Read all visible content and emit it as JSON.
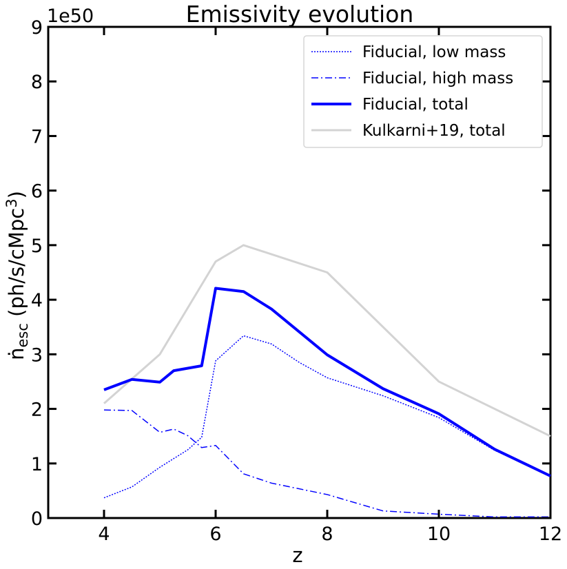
{
  "chart_data": {
    "type": "line",
    "title": "Emissivity evolution",
    "xlabel": "z",
    "ylabel_main": "ṅ",
    "ylabel_sub": "esc",
    "ylabel_rest": " (ph/s/cMpc",
    "ylabel_sup": "3",
    "ylabel_close": ")",
    "y_offset_label": "1e50",
    "xlim": [
      3,
      12
    ],
    "ylim": [
      0,
      9
    ],
    "xticks": [
      4,
      6,
      8,
      10,
      12
    ],
    "xtick_labels": [
      "4",
      "6",
      "8",
      "10",
      "12"
    ],
    "yticks": [
      0,
      1,
      2,
      3,
      4,
      5,
      6,
      7,
      8,
      9
    ],
    "ytick_labels": [
      "0",
      "1",
      "2",
      "3",
      "4",
      "5",
      "6",
      "7",
      "8",
      "9"
    ],
    "legend_position": "top-right",
    "series": [
      {
        "name": "Fiducial, low mass",
        "color": "#0000ff",
        "style": "dotted",
        "x": [
          4,
          4.5,
          5,
          5.5,
          5.75,
          6,
          6.5,
          7,
          7.5,
          8,
          9,
          10,
          11,
          12
        ],
        "y": [
          0.37,
          0.57,
          0.93,
          1.25,
          1.48,
          2.88,
          3.34,
          3.19,
          2.85,
          2.57,
          2.24,
          1.84,
          1.24,
          0.77
        ]
      },
      {
        "name": "Fiducial, high mass",
        "color": "#0000ff",
        "style": "dashdot",
        "x": [
          4,
          4.5,
          5,
          5.25,
          5.5,
          5.75,
          6,
          6.5,
          7,
          8,
          9,
          10,
          11,
          12
        ],
        "y": [
          1.98,
          1.97,
          1.57,
          1.63,
          1.51,
          1.29,
          1.33,
          0.81,
          0.64,
          0.43,
          0.13,
          0.07,
          0.02,
          0.02
        ]
      },
      {
        "name": "Fiducial, total",
        "color": "#0000ff",
        "style": "solid-thick",
        "x": [
          4,
          4.5,
          5,
          5.25,
          5.75,
          6,
          6.5,
          7,
          8,
          9,
          10,
          11,
          12
        ],
        "y": [
          2.35,
          2.54,
          2.49,
          2.7,
          2.79,
          4.21,
          4.15,
          3.83,
          2.99,
          2.37,
          1.91,
          1.26,
          0.77
        ]
      },
      {
        "name": "Kulkarni+19, total",
        "color": "#d3d3d3",
        "style": "solid",
        "x": [
          4,
          5,
          6,
          6.5,
          8,
          10,
          12
        ],
        "y": [
          2.1,
          3.0,
          4.7,
          5.0,
          4.5,
          2.5,
          1.5
        ]
      }
    ]
  }
}
